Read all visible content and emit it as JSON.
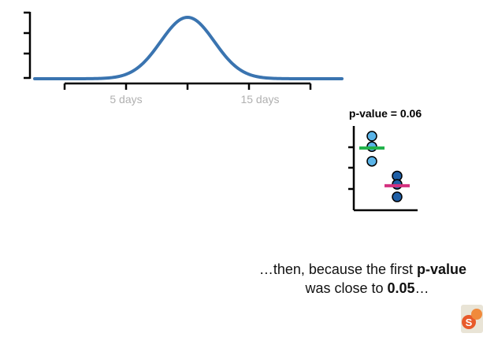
{
  "distribution": {
    "x_tick_labels": [
      "5 days",
      "15 days"
    ],
    "curve_color": "#3a74b0"
  },
  "pvalue_panel": {
    "title": "p-value = 0.06",
    "group1": {
      "point_color": "#5ab4e8",
      "mean_color": "#22b24c",
      "points": [
        3,
        3.5,
        2.3
      ]
    },
    "group2": {
      "point_color": "#1f5fa6",
      "mean_color": "#d4317f",
      "points": [
        1.6,
        1.2,
        0.6
      ]
    }
  },
  "caption": {
    "line1_pre": "…then, because the first ",
    "line1_bold": "p-value",
    "line2_pre": "was close to ",
    "line2_bold": "0.05",
    "line2_post": "…"
  },
  "logo": {
    "icon": "statquest-logo-icon"
  }
}
